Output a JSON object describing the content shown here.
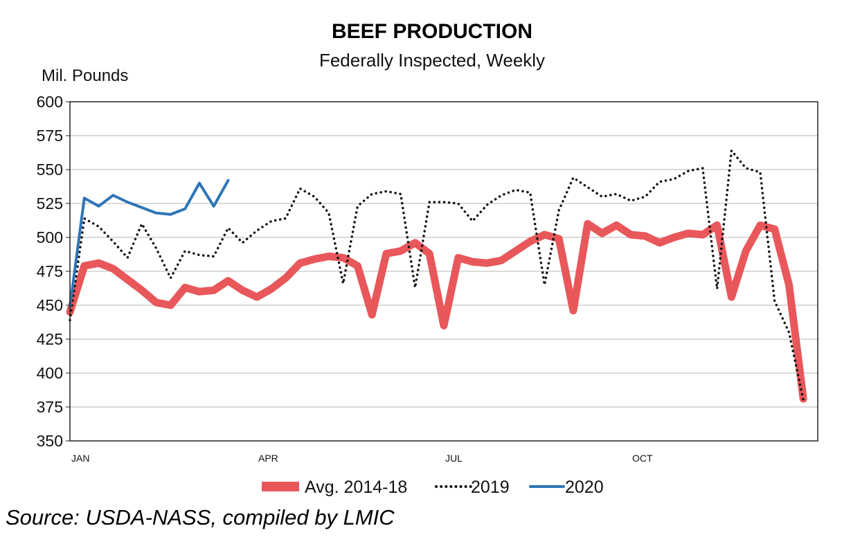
{
  "chart_data": {
    "type": "line",
    "title": "BEEF PRODUCTION",
    "subtitle": "Federally Inspected, Weekly",
    "ylabel": "Mil. Pounds",
    "xlabel": "",
    "ylim": [
      350,
      600
    ],
    "yticks": [
      350,
      375,
      400,
      425,
      450,
      475,
      500,
      525,
      550,
      575,
      600
    ],
    "xlim": [
      1,
      53
    ],
    "xtick_labels": [
      {
        "label": "JAN",
        "week": 1
      },
      {
        "label": "APR",
        "week": 14
      },
      {
        "label": "JUL",
        "week": 27
      },
      {
        "label": "OCT",
        "week": 40
      }
    ],
    "grid": "horizontal",
    "legend": "bottom",
    "series": [
      {
        "name": "Avg. 2014-18",
        "style": "thick-solid",
        "color": "#e8575a",
        "x": [
          1,
          2,
          3,
          4,
          5,
          6,
          7,
          8,
          9,
          10,
          11,
          12,
          13,
          14,
          15,
          16,
          17,
          18,
          19,
          20,
          21,
          22,
          23,
          24,
          25,
          26,
          27,
          28,
          29,
          30,
          31,
          32,
          33,
          34,
          35,
          36,
          37,
          38,
          39,
          40,
          41,
          42,
          43,
          44,
          45,
          46,
          47,
          48,
          49,
          50,
          51,
          52,
          53
        ],
        "values": [
          445,
          479,
          481,
          477,
          469,
          461,
          452,
          450,
          463,
          460,
          461,
          468,
          461,
          456,
          462,
          470,
          481,
          484,
          486,
          485,
          479,
          443,
          488,
          490,
          496,
          488,
          435,
          485,
          482,
          481,
          483,
          490,
          497,
          502,
          499,
          446,
          510,
          503,
          509,
          502,
          501,
          496,
          500,
          503,
          502,
          509,
          456,
          490,
          509,
          506,
          465,
          381,
          null
        ]
      },
      {
        "name": "2019",
        "style": "dotted",
        "color": "#111111",
        "x": [
          1,
          2,
          3,
          4,
          5,
          6,
          7,
          8,
          9,
          10,
          11,
          12,
          13,
          14,
          15,
          16,
          17,
          18,
          19,
          20,
          21,
          22,
          23,
          24,
          25,
          26,
          27,
          28,
          29,
          30,
          31,
          32,
          33,
          34,
          35,
          36,
          37,
          38,
          39,
          40,
          41,
          42,
          43,
          44,
          45,
          46,
          47,
          48,
          49,
          50,
          51,
          52
        ],
        "values": [
          439,
          514,
          508,
          497,
          485,
          510,
          492,
          470,
          490,
          487,
          486,
          507,
          496,
          505,
          512,
          514,
          536,
          530,
          518,
          466,
          523,
          532,
          534,
          532,
          463,
          526,
          526,
          525,
          512,
          524,
          531,
          535,
          533,
          465,
          520,
          544,
          537,
          530,
          532,
          527,
          530,
          541,
          543,
          549,
          551,
          462,
          564,
          551,
          548,
          453,
          430,
          380
        ]
      },
      {
        "name": "2020",
        "style": "solid",
        "color": "#2e75b6",
        "x": [
          1,
          2,
          3,
          4,
          5,
          6,
          7,
          8,
          9,
          10,
          11,
          12
        ],
        "values": [
          449,
          529,
          523,
          531,
          526,
          522,
          518,
          517,
          521,
          540,
          523,
          542
        ]
      }
    ]
  },
  "source_text": "Source: USDA-NASS, compiled by LMIC"
}
